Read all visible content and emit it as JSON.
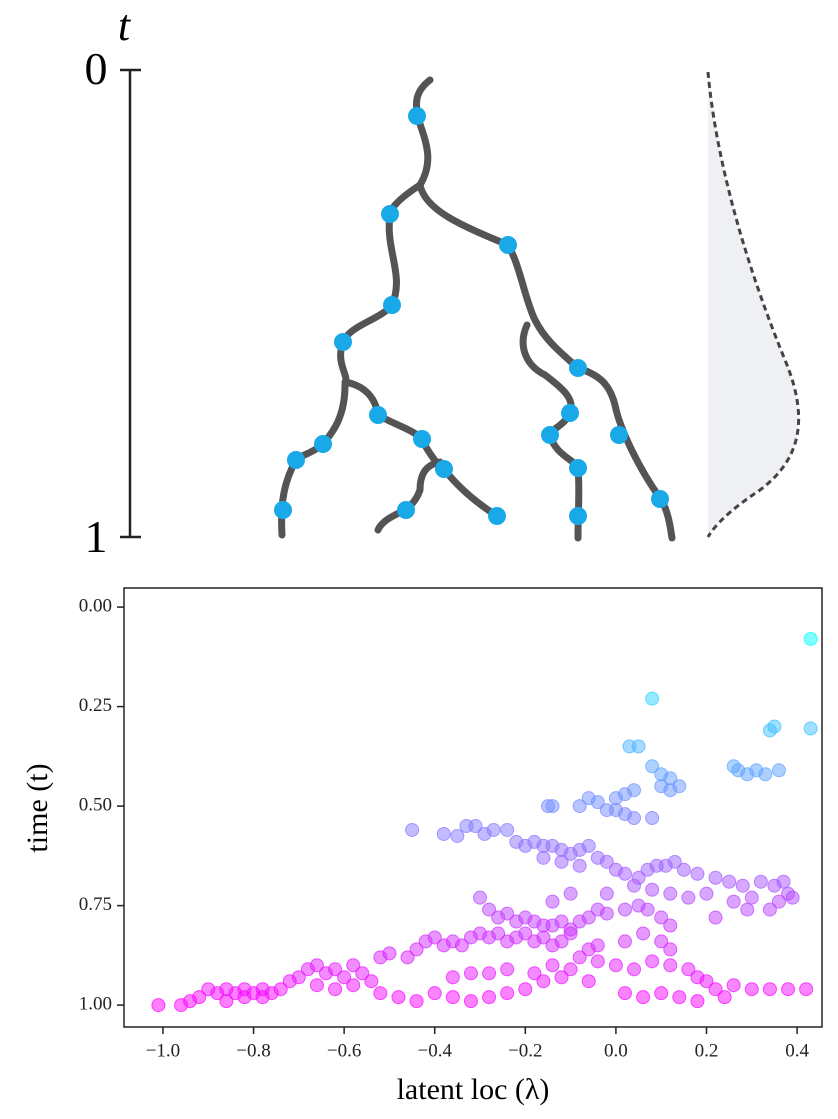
{
  "diagram": {
    "axis_label": "t",
    "start_label": "0",
    "end_label": "1"
  },
  "chart_data": {
    "type": "scatter",
    "xlabel": "latent loc (λ)",
    "ylabel": "time (t)",
    "colormap": "cool",
    "alpha": 0.5,
    "xlim": [
      -1.086,
      0.455
    ],
    "ylim": [
      1.055,
      -0.048
    ],
    "xticks": [
      {
        "value": -1.0,
        "label": "−1.0"
      },
      {
        "value": -0.8,
        "label": "−0.8"
      },
      {
        "value": -0.6,
        "label": "−0.6"
      },
      {
        "value": -0.4,
        "label": "−0.4"
      },
      {
        "value": -0.2,
        "label": "−0.2"
      },
      {
        "value": 0.0,
        "label": "0.0"
      },
      {
        "value": 0.2,
        "label": "0.2"
      },
      {
        "value": 0.4,
        "label": "0.4"
      }
    ],
    "yticks": [
      {
        "value": 0.0,
        "label": "0.00"
      },
      {
        "value": 0.25,
        "label": "0.25"
      },
      {
        "value": 0.5,
        "label": "0.50"
      },
      {
        "value": 0.75,
        "label": "0.75"
      },
      {
        "value": 1.0,
        "label": "1.00"
      }
    ],
    "x": [
      0.43,
      0.08,
      0.35,
      0.34,
      0.43,
      0.03,
      0.05,
      0.08,
      0.12,
      0.1,
      0.27,
      0.29,
      0.31,
      0.33,
      0.36,
      0.26,
      0.1,
      0.12,
      0.14,
      0.04,
      0.02,
      0.0,
      -0.04,
      -0.06,
      -0.08,
      -0.14,
      -0.15,
      0.0,
      0.02,
      -0.02,
      0.04,
      0.08,
      -0.45,
      -0.38,
      -0.35,
      -0.33,
      -0.31,
      -0.29,
      -0.27,
      -0.24,
      -0.22,
      -0.2,
      -0.18,
      -0.16,
      -0.14,
      -0.12,
      -0.1,
      -0.08,
      -0.06,
      -0.04,
      -0.02,
      -0.16,
      -0.12,
      -0.08,
      0.0,
      0.02,
      0.05,
      0.07,
      0.09,
      0.11,
      0.13,
      0.15,
      0.18,
      0.22,
      0.25,
      0.28,
      0.32,
      0.35,
      0.37,
      0.38,
      0.36,
      0.34,
      0.39,
      0.3,
      0.26,
      0.2,
      0.16,
      0.12,
      0.08,
      0.04,
      -0.02,
      0.22,
      0.29,
      -0.3,
      -0.28,
      -0.26,
      -0.24,
      -0.22,
      -0.2,
      -0.18,
      -0.16,
      -0.14,
      -0.12,
      -0.1,
      -0.08,
      -0.06,
      -0.04,
      -0.02,
      0.02,
      0.05,
      0.07,
      0.1,
      0.12,
      -0.14,
      -0.1,
      -0.42,
      -0.4,
      -0.38,
      -0.36,
      -0.34,
      -0.32,
      -0.3,
      -0.28,
      -0.26,
      -0.24,
      -0.22,
      -0.2,
      -0.18,
      -0.16,
      -0.14,
      -0.12,
      -0.1,
      -0.06,
      -0.04,
      0.02,
      0.06,
      0.1,
      0.12,
      -0.52,
      -0.5,
      -0.46,
      -0.44,
      -0.08,
      -0.04,
      0.0,
      0.04,
      0.08,
      0.12,
      0.16,
      0.18,
      -0.1,
      -0.14,
      -0.18,
      -0.24,
      -0.28,
      -0.32,
      -0.36,
      -0.7,
      -0.68,
      -0.66,
      -0.64,
      -0.62,
      -0.6,
      -0.58,
      -0.56,
      -0.54,
      -0.58,
      -0.62,
      -0.66,
      -0.72,
      -0.74,
      -0.76,
      -0.78,
      -0.8,
      -0.82,
      -0.84,
      -0.86,
      -0.88,
      -0.9,
      -0.92,
      -0.94,
      -0.86,
      -0.82,
      -0.78,
      -0.96,
      -1.01,
      -0.52,
      -0.48,
      -0.44,
      -0.4,
      -0.36,
      -0.32,
      -0.28,
      -0.24,
      -0.2,
      -0.16,
      -0.12,
      -0.06,
      0.02,
      0.06,
      0.1,
      0.14,
      0.18,
      0.22,
      0.26,
      0.3,
      0.34,
      0.38,
      0.42,
      0.24,
      0.2
    ],
    "values": [
      0.08,
      0.23,
      0.3,
      0.31,
      0.305,
      0.35,
      0.35,
      0.4,
      0.43,
      0.42,
      0.41,
      0.42,
      0.41,
      0.42,
      0.41,
      0.4,
      0.45,
      0.46,
      0.45,
      0.46,
      0.47,
      0.48,
      0.49,
      0.48,
      0.5,
      0.5,
      0.5,
      0.51,
      0.52,
      0.51,
      0.53,
      0.53,
      0.56,
      0.57,
      0.575,
      0.55,
      0.55,
      0.57,
      0.56,
      0.56,
      0.59,
      0.6,
      0.59,
      0.6,
      0.6,
      0.61,
      0.62,
      0.61,
      0.6,
      0.63,
      0.64,
      0.63,
      0.64,
      0.65,
      0.66,
      0.67,
      0.68,
      0.66,
      0.65,
      0.65,
      0.64,
      0.66,
      0.67,
      0.68,
      0.69,
      0.7,
      0.69,
      0.7,
      0.69,
      0.72,
      0.74,
      0.76,
      0.73,
      0.73,
      0.74,
      0.72,
      0.73,
      0.72,
      0.71,
      0.7,
      0.72,
      0.78,
      0.76,
      0.73,
      0.76,
      0.78,
      0.77,
      0.79,
      0.78,
      0.79,
      0.8,
      0.8,
      0.79,
      0.81,
      0.79,
      0.78,
      0.76,
      0.77,
      0.76,
      0.75,
      0.76,
      0.78,
      0.8,
      0.74,
      0.72,
      0.84,
      0.83,
      0.85,
      0.84,
      0.85,
      0.83,
      0.82,
      0.83,
      0.82,
      0.84,
      0.83,
      0.82,
      0.84,
      0.83,
      0.85,
      0.84,
      0.82,
      0.86,
      0.85,
      0.84,
      0.82,
      0.84,
      0.86,
      0.88,
      0.87,
      0.88,
      0.86,
      0.88,
      0.89,
      0.9,
      0.91,
      0.89,
      0.9,
      0.91,
      0.93,
      0.91,
      0.9,
      0.92,
      0.91,
      0.92,
      0.92,
      0.93,
      0.93,
      0.91,
      0.9,
      0.92,
      0.91,
      0.93,
      0.9,
      0.92,
      0.94,
      0.95,
      0.96,
      0.95,
      0.94,
      0.96,
      0.97,
      0.96,
      0.97,
      0.96,
      0.97,
      0.96,
      0.97,
      0.96,
      0.98,
      0.99,
      0.99,
      0.98,
      0.98,
      1.0,
      1.0,
      0.97,
      0.98,
      0.99,
      0.97,
      0.98,
      0.99,
      0.98,
      0.97,
      0.96,
      0.94,
      0.93,
      0.94,
      0.97,
      0.98,
      0.97,
      0.98,
      0.99,
      0.96,
      0.95,
      0.96,
      0.96,
      0.96,
      0.96,
      0.98,
      0.94
    ]
  }
}
